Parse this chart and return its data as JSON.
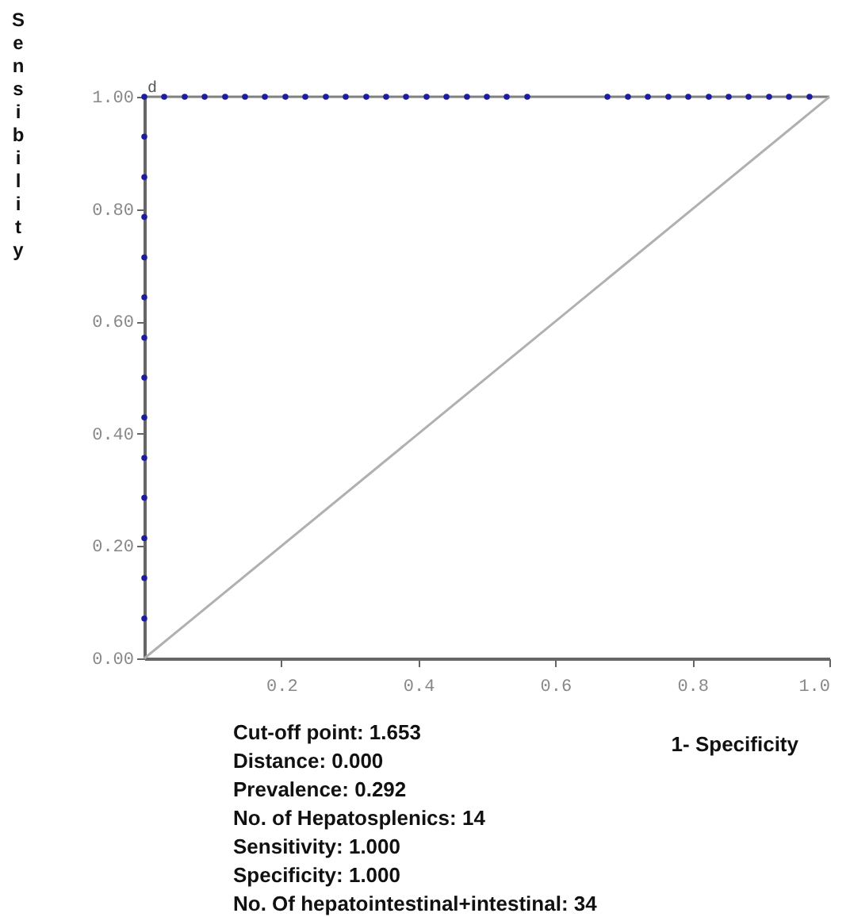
{
  "chart_data": {
    "type": "line",
    "xlabel": "1- Specificity",
    "ylabel": "Sensibility",
    "series": [
      {
        "color": "#808080",
        "x": [
          0,
          1
        ],
        "values": [
          1,
          1
        ]
      },
      {
        "color": "#b0b0b0",
        "x": [
          0,
          1
        ],
        "values": [
          0,
          1
        ]
      },
      {
        "type": "scatter",
        "color": "#1c1ca0",
        "marker": "circle",
        "x": [
          0,
          0,
          0,
          0,
          0,
          0,
          0,
          0,
          0,
          0,
          0,
          0,
          0,
          0,
          0.029,
          0.059,
          0.088,
          0.118,
          0.147,
          0.176,
          0.206,
          0.235,
          0.265,
          0.294,
          0.324,
          0.353,
          0.382,
          0.412,
          0.441,
          0.471,
          0.5,
          0.529,
          0.559,
          0.676,
          0.706,
          0.735,
          0.765,
          0.794,
          0.824,
          0.853,
          0.882,
          0.912,
          0.941,
          0.971
        ],
        "values": [
          0.071,
          0.143,
          0.214,
          0.286,
          0.357,
          0.429,
          0.5,
          0.571,
          0.643,
          0.714,
          0.786,
          0.857,
          0.929,
          1,
          1,
          1,
          1,
          1,
          1,
          1,
          1,
          1,
          1,
          1,
          1,
          1,
          1,
          1,
          1,
          1,
          1,
          1,
          1,
          1,
          1,
          1,
          1,
          1,
          1,
          1,
          1,
          1,
          1,
          1
        ]
      }
    ],
    "xlim": [
      0,
      1
    ],
    "ylim": [
      0,
      1
    ],
    "xticks": [
      {
        "value": 0.2,
        "label": "0.2"
      },
      {
        "value": 0.4,
        "label": "0.4"
      },
      {
        "value": 0.6,
        "label": "0.6"
      },
      {
        "value": 0.8,
        "label": "0.8"
      },
      {
        "value": 1.0,
        "label": "1.0"
      }
    ],
    "yticks": [
      {
        "value": 0,
        "label": "0.00"
      },
      {
        "value": 0.2,
        "label": "0.20"
      },
      {
        "value": 0.4,
        "label": "0.40"
      },
      {
        "value": 0.6,
        "label": "0.60"
      },
      {
        "value": 0.8,
        "label": "0.80"
      },
      {
        "value": 1.0,
        "label": "1.00"
      }
    ],
    "grid": false,
    "annotations": [
      {
        "text": "d",
        "x": 0,
        "y": 1
      },
      "Cut-off point: 1.653",
      "Distance: 0.000",
      "Prevalence: 0.292",
      "No. of Hepatosplenics: 14",
      "Sensitivity: 1.000",
      "Specificity: 1.000",
      "No. Of hepatointestinal+intestinal: 34"
    ]
  }
}
